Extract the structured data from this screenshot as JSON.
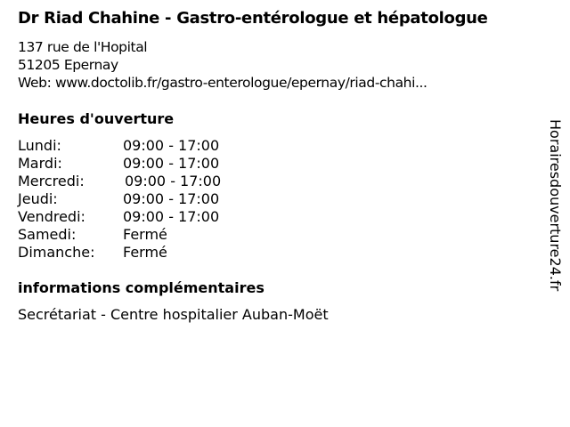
{
  "title": "Dr Riad Chahine - Gastro-entérologue et hépatologue",
  "address": {
    "street": "137 rue de l'Hopital",
    "city": "51205 Epernay",
    "web": "Web: www.doctolib.fr/gastro-enterologue/epernay/riad-chahi..."
  },
  "hours_heading": "Heures d'ouverture",
  "hours": [
    {
      "day": "Lundi:",
      "time": "09:00 - 17:00"
    },
    {
      "day": "Mardi:",
      "time": "09:00 - 17:00"
    },
    {
      "day": "Mercredi:",
      "time": "09:00 - 17:00"
    },
    {
      "day": "Jeudi:",
      "time": "09:00 - 17:00"
    },
    {
      "day": "Vendredi:",
      "time": "09:00 - 17:00"
    },
    {
      "day": "Samedi:",
      "time": "Fermé"
    },
    {
      "day": "Dimanche:",
      "time": "Fermé"
    }
  ],
  "info_heading": "informations complémentaires",
  "info_text": "Secrétariat - Centre hospitalier Auban-Moët",
  "watermark": "Horairesdouverture24.fr"
}
